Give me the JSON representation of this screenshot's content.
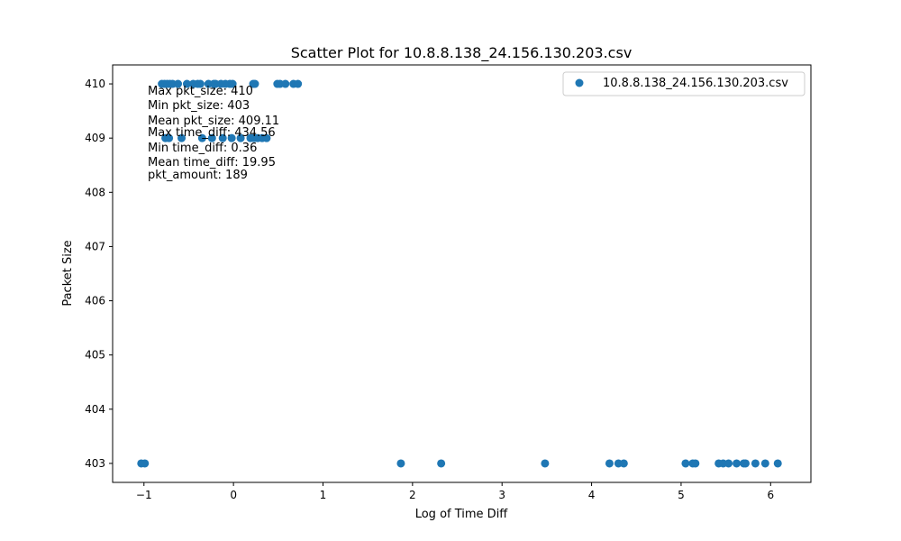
{
  "chart_data": {
    "type": "scatter",
    "title": "Scatter Plot for 10.8.8.138_24.156.130.203.csv",
    "xlabel": "Log of Time Diff",
    "ylabel": "Packet Size",
    "xlim": [
      -1.35,
      6.45
    ],
    "ylim": [
      402.65,
      410.35
    ],
    "xticks": [
      -1,
      0,
      1,
      2,
      3,
      4,
      5,
      6
    ],
    "yticks": [
      403,
      404,
      405,
      406,
      407,
      408,
      409,
      410
    ],
    "grid": false,
    "legend_position": "top-right",
    "color": "#1f77b4",
    "series": [
      {
        "name": "10.8.8.138_24.156.130.203.csv",
        "points": [
          [
            -0.8,
            410
          ],
          [
            -0.77,
            410
          ],
          [
            -0.74,
            410
          ],
          [
            -0.71,
            410
          ],
          [
            -0.68,
            410
          ],
          [
            -0.62,
            410
          ],
          [
            -0.52,
            410
          ],
          [
            -0.45,
            410
          ],
          [
            -0.4,
            410
          ],
          [
            -0.37,
            410
          ],
          [
            -0.28,
            410
          ],
          [
            -0.22,
            410
          ],
          [
            -0.2,
            410
          ],
          [
            -0.14,
            410
          ],
          [
            -0.09,
            410
          ],
          [
            -0.04,
            410
          ],
          [
            -0.01,
            410
          ],
          [
            0.22,
            410
          ],
          [
            0.24,
            410
          ],
          [
            0.49,
            410
          ],
          [
            0.52,
            410
          ],
          [
            0.58,
            410
          ],
          [
            0.67,
            410
          ],
          [
            0.72,
            410
          ],
          [
            -0.76,
            409
          ],
          [
            -0.72,
            409
          ],
          [
            -0.58,
            409
          ],
          [
            -0.35,
            409
          ],
          [
            -0.24,
            409
          ],
          [
            -0.12,
            409
          ],
          [
            -0.02,
            409
          ],
          [
            0.08,
            409
          ],
          [
            0.19,
            409
          ],
          [
            0.23,
            409
          ],
          [
            0.27,
            409
          ],
          [
            0.32,
            409
          ],
          [
            0.37,
            409
          ],
          [
            -1.03,
            403
          ],
          [
            -0.99,
            403
          ],
          [
            1.87,
            403
          ],
          [
            2.32,
            403
          ],
          [
            3.48,
            403
          ],
          [
            4.2,
            403
          ],
          [
            4.3,
            403
          ],
          [
            4.36,
            403
          ],
          [
            5.05,
            403
          ],
          [
            5.13,
            403
          ],
          [
            5.16,
            403
          ],
          [
            5.42,
            403
          ],
          [
            5.47,
            403
          ],
          [
            5.53,
            403
          ],
          [
            5.62,
            403
          ],
          [
            5.7,
            403
          ],
          [
            5.72,
            403
          ],
          [
            5.83,
            403
          ],
          [
            5.94,
            403
          ],
          [
            6.08,
            403
          ]
        ]
      }
    ],
    "annotations": [
      "Max pkt_size: 410",
      "Min pkt_size: 403",
      "Mean pkt_size: 409.11",
      "Max time_diff: 434.56",
      "Min time_diff: 0.36",
      "Mean time_diff: 19.95",
      "pkt_amount: 189"
    ]
  }
}
